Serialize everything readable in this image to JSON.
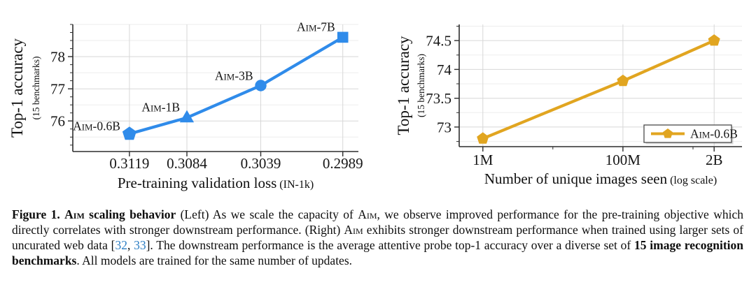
{
  "caption": {
    "segments": [
      {
        "text": "Figure 1. "
      },
      {
        "text": "Aim"
      },
      {
        "text": " scaling behavior"
      },
      {
        "text": " (Left) As we scale the capacity of "
      },
      {
        "text": "Aim"
      },
      {
        "text": ", we observe improved performance for the pre-training objective which directly correlates with stronger downstream performance. (Right) "
      },
      {
        "text": "Aim"
      },
      {
        "text": " exhibits stronger downstream performance when trained using larger sets of uncurated web data ["
      },
      {
        "text": "32"
      },
      {
        "text": ", "
      },
      {
        "text": "33"
      },
      {
        "text": "]. The downstream performance is the average attentive probe top-1 accuracy over a diverse set of "
      },
      {
        "text": "15 image recognition benchmarks"
      },
      {
        "text": ". All models are trained for the same number of updates."
      }
    ],
    "citation_color": "#2e7fc4"
  },
  "chart_data": [
    {
      "type": "line",
      "ylabel": "Top-1 accuracy",
      "ylabel_note": "(15 benchmarks)",
      "xlabel": "Pre-training validation loss",
      "xlabel_note": "(IN-1k)",
      "xlim": [
        0.31535,
        0.29795
      ],
      "xlog": false,
      "ylim": [
        75.05,
        79.0
      ],
      "y_ticks": [
        76,
        77,
        78
      ],
      "x_ticks": [
        {
          "value": 0.3119,
          "label": "0.3119"
        },
        {
          "value": 0.3084,
          "label": "0.3084"
        },
        {
          "value": 0.3039,
          "label": "0.3039"
        },
        {
          "value": 0.2989,
          "label": "0.2989"
        }
      ],
      "grid": true,
      "line_color": "#2f8bea",
      "series": [
        {
          "points": [
            {
              "label": "Aim-0.6B",
              "x": 0.3119,
              "y": 75.6,
              "marker": "pentagon"
            },
            {
              "label": "Aim-1B",
              "x": 0.3084,
              "y": 76.1,
              "marker": "triangle"
            },
            {
              "label": "Aim-3B",
              "x": 0.3039,
              "y": 77.1,
              "marker": "circle"
            },
            {
              "label": "Aim-7B",
              "x": 0.2989,
              "y": 78.6,
              "marker": "square"
            }
          ]
        }
      ]
    },
    {
      "type": "line",
      "ylabel": "Top-1 accuracy",
      "ylabel_note": "(15 benchmarks)",
      "xlabel": "Number of unique images seen",
      "xlabel_note": "(log scale)",
      "xlim": [
        460000,
        5000000000
      ],
      "xlog": true,
      "ylim": [
        72.66,
        74.78
      ],
      "y_ticks": [
        73,
        73.5,
        74,
        74.5
      ],
      "x_ticks": [
        {
          "value": 1000000,
          "label": "1M"
        },
        {
          "value": 100000000,
          "label": "100M"
        },
        {
          "value": 2000000000,
          "label": "2B"
        }
      ],
      "grid": true,
      "line_color": "#e1a520",
      "legend": {
        "label": "Aim-0.6B",
        "marker": "pentagon",
        "position": "lower right"
      },
      "series": [
        {
          "name": "Aim-0.6B",
          "marker": "pentagon",
          "points": [
            {
              "x": 1000000,
              "y": 72.8
            },
            {
              "x": 100000000,
              "y": 73.8
            },
            {
              "x": 2000000000,
              "y": 74.5
            }
          ]
        }
      ]
    }
  ]
}
